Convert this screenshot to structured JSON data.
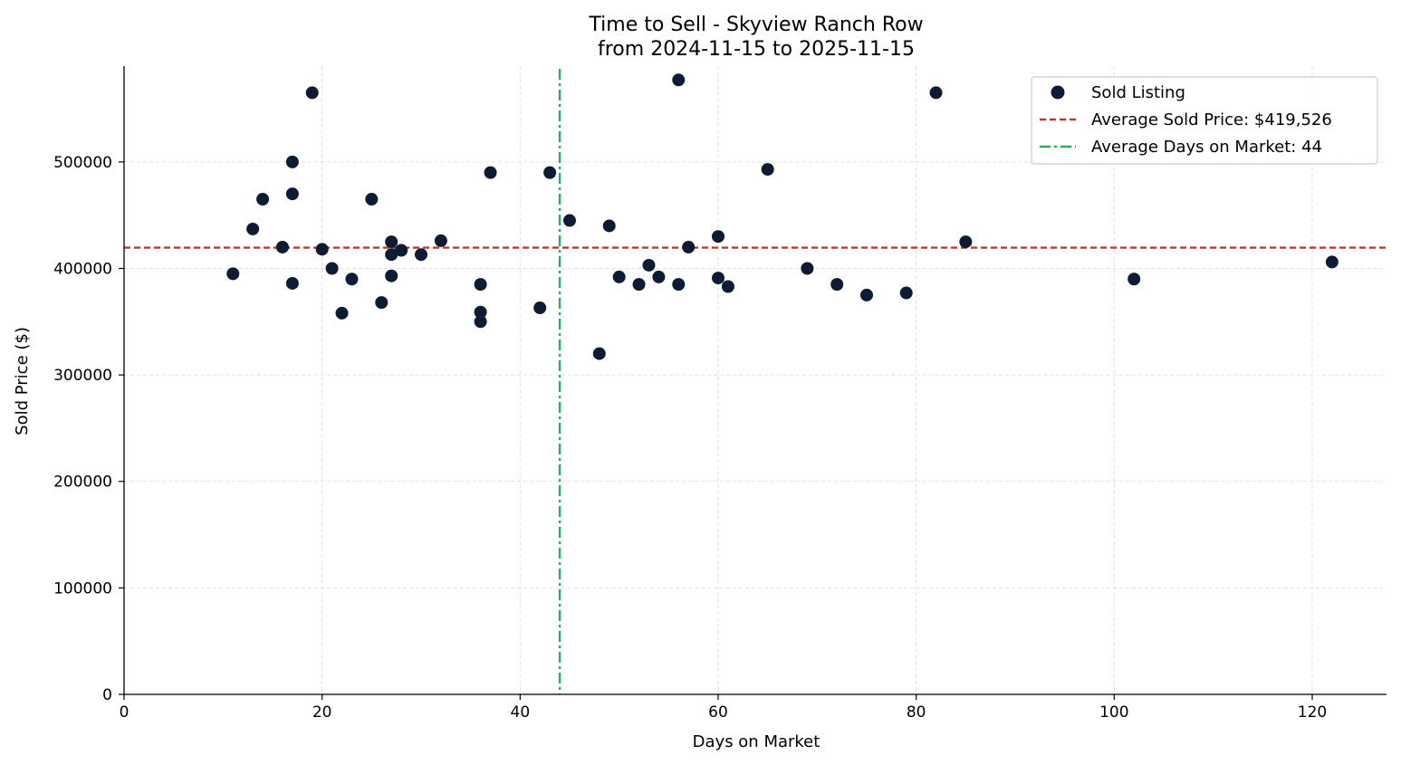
{
  "chart_data": {
    "type": "scatter",
    "title": [
      "Time to Sell - Skyview Ranch Row",
      "from 2024-11-15 to 2025-11-15"
    ],
    "xlabel": "Days on Market",
    "ylabel": "Sold Price ($)",
    "xlim": [
      0,
      127.5
    ],
    "ylim": [
      0,
      590000
    ],
    "xticks": [
      0,
      20,
      40,
      60,
      80,
      100,
      120
    ],
    "yticks": [
      0,
      100000,
      200000,
      300000,
      400000,
      500000
    ],
    "grid": true,
    "legend_position": "top-right",
    "colors": {
      "points": "#0d1b33",
      "avg_price": "#c0392b",
      "avg_days": "#27ae60",
      "grid": "#d9d9d9"
    },
    "series": [
      {
        "name": "Sold Listing",
        "points": [
          [
            11,
            395000
          ],
          [
            13,
            437000
          ],
          [
            14,
            465000
          ],
          [
            16,
            420000
          ],
          [
            17,
            500000
          ],
          [
            17,
            470000
          ],
          [
            17,
            386000
          ],
          [
            19,
            565000
          ],
          [
            20,
            418000
          ],
          [
            21,
            400000
          ],
          [
            22,
            358000
          ],
          [
            23,
            390000
          ],
          [
            25,
            465000
          ],
          [
            26,
            368000
          ],
          [
            27,
            425000
          ],
          [
            27,
            413000
          ],
          [
            27,
            393000
          ],
          [
            28,
            417000
          ],
          [
            30,
            413000
          ],
          [
            32,
            426000
          ],
          [
            36,
            385000
          ],
          [
            36,
            359000
          ],
          [
            36,
            350000
          ],
          [
            37,
            490000
          ],
          [
            42,
            363000
          ],
          [
            43,
            490000
          ],
          [
            45,
            445000
          ],
          [
            48,
            320000
          ],
          [
            49,
            440000
          ],
          [
            50,
            392000
          ],
          [
            52,
            385000
          ],
          [
            53,
            403000
          ],
          [
            54,
            392000
          ],
          [
            56,
            577000
          ],
          [
            56,
            385000
          ],
          [
            57,
            420000
          ],
          [
            60,
            430000
          ],
          [
            60,
            391000
          ],
          [
            61,
            383000
          ],
          [
            65,
            493000
          ],
          [
            69,
            400000
          ],
          [
            72,
            385000
          ],
          [
            75,
            375000
          ],
          [
            79,
            377000
          ],
          [
            82,
            565000
          ],
          [
            85,
            425000
          ],
          [
            102,
            390000
          ],
          [
            122,
            406000
          ]
        ]
      }
    ],
    "reference_lines": [
      {
        "name": "Average Sold Price: $419,526",
        "orientation": "horizontal",
        "value": 419526,
        "style": "dashed"
      },
      {
        "name": "Average Days on Market: 44",
        "orientation": "vertical",
        "value": 44,
        "style": "dashdot"
      }
    ]
  }
}
